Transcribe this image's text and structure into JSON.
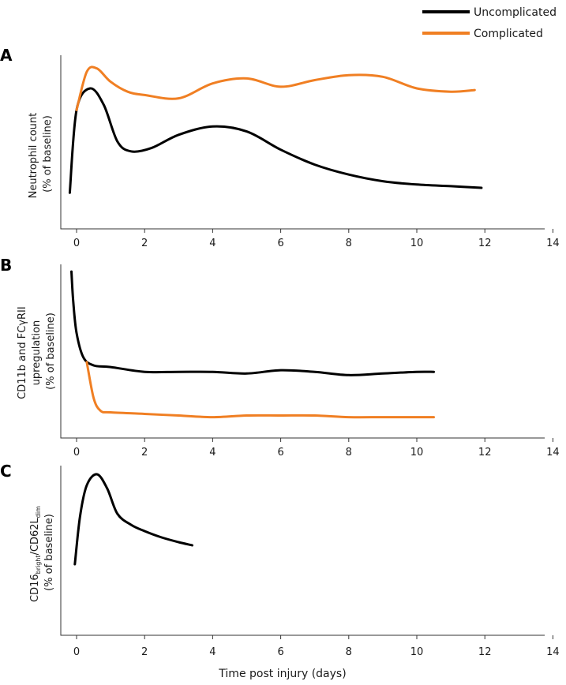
{
  "colors": {
    "uncomplicated": "#000000",
    "complicated": "#f07f23",
    "axis": "#333333"
  },
  "legend": {
    "items": [
      {
        "key": "uncomplicated",
        "label": "Uncomplicated"
      },
      {
        "key": "complicated",
        "label": "Complicated"
      }
    ]
  },
  "x_axis_title": "Time post injury (days)",
  "chart_data": [
    {
      "type": "line",
      "panel": "A",
      "ylabel_lines": [
        "Neutrophil count",
        "(% of baseline)"
      ],
      "xlim": [
        -0.5,
        14
      ],
      "ylim": [
        0,
        100
      ],
      "xticks": [
        0,
        2,
        4,
        6,
        8,
        10,
        12,
        14
      ],
      "series": [
        {
          "key": "uncomplicated",
          "name": "Uncomplicated",
          "x": [
            -0.2,
            0.0,
            0.4,
            0.8,
            1.2,
            1.6,
            2.2,
            3.0,
            4.0,
            5.0,
            6.0,
            7.0,
            8.0,
            9.0,
            10.0,
            11.0,
            11.9
          ],
          "y": [
            17,
            67,
            80,
            70,
            48,
            42,
            44,
            52,
            57,
            54,
            43,
            34,
            28,
            24,
            22,
            21,
            20
          ]
        },
        {
          "key": "complicated",
          "name": "Complicated",
          "x": [
            0.0,
            0.3,
            0.6,
            1.0,
            1.5,
            2.0,
            3.0,
            4.0,
            5.0,
            6.0,
            7.0,
            8.0,
            9.0,
            10.0,
            11.0,
            11.7
          ],
          "y": [
            67,
            90,
            92,
            84,
            78,
            76,
            74,
            83,
            86,
            81,
            85,
            88,
            87,
            80,
            78,
            79
          ]
        }
      ]
    },
    {
      "type": "line",
      "panel": "B",
      "ylabel_lines": [
        "CD11b and FCγRII",
        "upregulation",
        "(% of baseline)"
      ],
      "xlim": [
        -0.5,
        14
      ],
      "ylim": [
        0,
        100
      ],
      "xticks": [
        0,
        2,
        4,
        6,
        8,
        10,
        12,
        14
      ],
      "series": [
        {
          "key": "uncomplicated",
          "name": "Uncomplicated",
          "x": [
            -0.15,
            -0.1,
            0.0,
            0.2,
            0.5,
            1.0,
            2.0,
            3.0,
            4.0,
            5.0,
            6.0,
            7.0,
            8.0,
            9.0,
            10.0,
            10.5
          ],
          "y": [
            98,
            80,
            60,
            45,
            40,
            39,
            36,
            36,
            36,
            35,
            37,
            36,
            34,
            35,
            36,
            36
          ]
        },
        {
          "key": "complicated",
          "name": "Complicated",
          "x": [
            0.3,
            0.5,
            0.7,
            1.0,
            2.0,
            3.0,
            4.0,
            5.0,
            6.0,
            7.0,
            8.0,
            9.0,
            10.0,
            10.5
          ],
          "y": [
            42,
            20,
            12,
            11,
            10,
            9,
            8,
            9,
            9,
            9,
            8,
            8,
            8,
            8
          ]
        }
      ]
    },
    {
      "type": "line",
      "panel": "C",
      "ylabel_lines": [
        "CD16bright/CD62Ldim",
        "(% of baseline)"
      ],
      "xlim": [
        -0.5,
        14
      ],
      "ylim": [
        0,
        100
      ],
      "xticks": [
        0,
        2,
        4,
        6,
        8,
        10,
        12,
        14
      ],
      "series": [
        {
          "key": "uncomplicated",
          "name": "Uncomplicated",
          "x": [
            -0.05,
            0.1,
            0.3,
            0.6,
            0.9,
            1.2,
            1.6,
            2.0,
            2.5,
            3.0,
            3.4
          ],
          "y": [
            40,
            70,
            90,
            97,
            88,
            72,
            65,
            61,
            57,
            54,
            52
          ]
        }
      ]
    }
  ]
}
